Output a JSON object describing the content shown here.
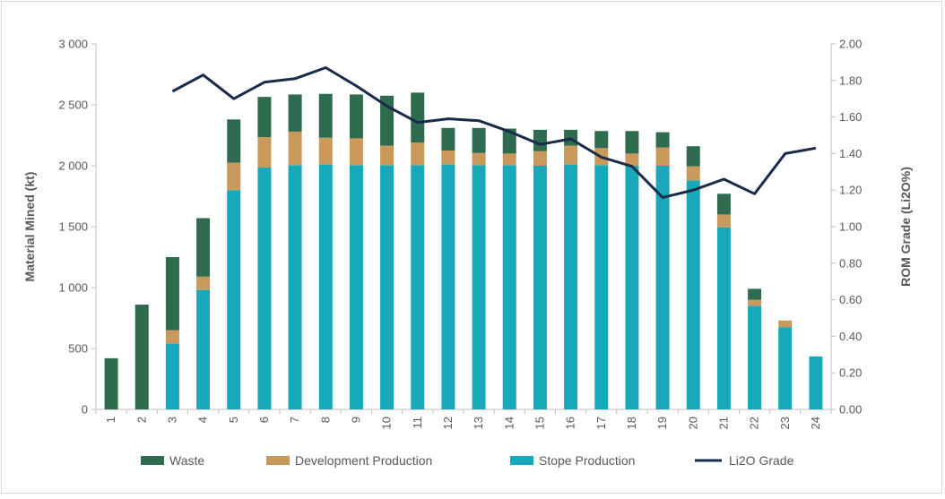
{
  "chart_data": {
    "type": "bar",
    "stacked": true,
    "categories": [
      "1",
      "2",
      "3",
      "4",
      "5",
      "6",
      "7",
      "8",
      "9",
      "10",
      "11",
      "12",
      "13",
      "14",
      "15",
      "16",
      "17",
      "18",
      "19",
      "20",
      "21",
      "22",
      "23",
      "24"
    ],
    "series": [
      {
        "name": "Stope Production",
        "kind": "bar",
        "axis": "left",
        "color": "#17a9b9",
        "values": [
          0,
          0,
          540,
          980,
          1800,
          1985,
          2005,
          2010,
          2005,
          2005,
          2005,
          2010,
          2005,
          2005,
          2000,
          2010,
          2005,
          2000,
          2000,
          1880,
          1495,
          850,
          675,
          435
        ]
      },
      {
        "name": "Development Production",
        "kind": "bar",
        "axis": "left",
        "color": "#c9995c",
        "values": [
          0,
          0,
          110,
          110,
          225,
          250,
          275,
          220,
          220,
          160,
          185,
          115,
          100,
          95,
          120,
          155,
          140,
          100,
          150,
          115,
          105,
          50,
          55,
          0
        ]
      },
      {
        "name": "Waste",
        "kind": "bar",
        "axis": "left",
        "color": "#2e6b4f",
        "values": [
          420,
          860,
          600,
          480,
          355,
          330,
          305,
          360,
          360,
          410,
          410,
          185,
          205,
          205,
          175,
          130,
          140,
          185,
          125,
          165,
          170,
          90,
          0,
          0
        ]
      },
      {
        "name": "Li2O Grade",
        "kind": "line",
        "axis": "right",
        "color": "#1a2b4a",
        "values": [
          null,
          null,
          1.74,
          1.83,
          1.7,
          1.79,
          1.81,
          1.87,
          1.77,
          1.66,
          1.57,
          1.59,
          1.58,
          1.52,
          1.45,
          1.48,
          1.38,
          1.33,
          1.16,
          1.2,
          1.26,
          1.18,
          1.4,
          1.43
        ]
      }
    ],
    "ylabel": "Material Mined (kt)",
    "ylim": [
      0,
      3000
    ],
    "yticks": [
      "0",
      "500",
      "1 000",
      "1 500",
      "2 000",
      "2 500",
      "3 000"
    ],
    "y2label": "ROM Grade (Li2O%)",
    "y2lim": [
      0,
      2.0
    ],
    "y2ticks": [
      "0.00",
      "0.20",
      "0.40",
      "0.60",
      "0.80",
      "1.00",
      "1.20",
      "1.40",
      "1.60",
      "1.80",
      "2.00"
    ],
    "grid": false,
    "legend": {
      "position": "bottom",
      "items": [
        {
          "label": "Waste",
          "color": "#2e6b4f",
          "kind": "bar"
        },
        {
          "label": "Development Production",
          "color": "#c9995c",
          "kind": "bar"
        },
        {
          "label": "Stope Production",
          "color": "#17a9b9",
          "kind": "bar"
        },
        {
          "label": "Li2O Grade",
          "color": "#1a2b4a",
          "kind": "line"
        }
      ]
    }
  }
}
